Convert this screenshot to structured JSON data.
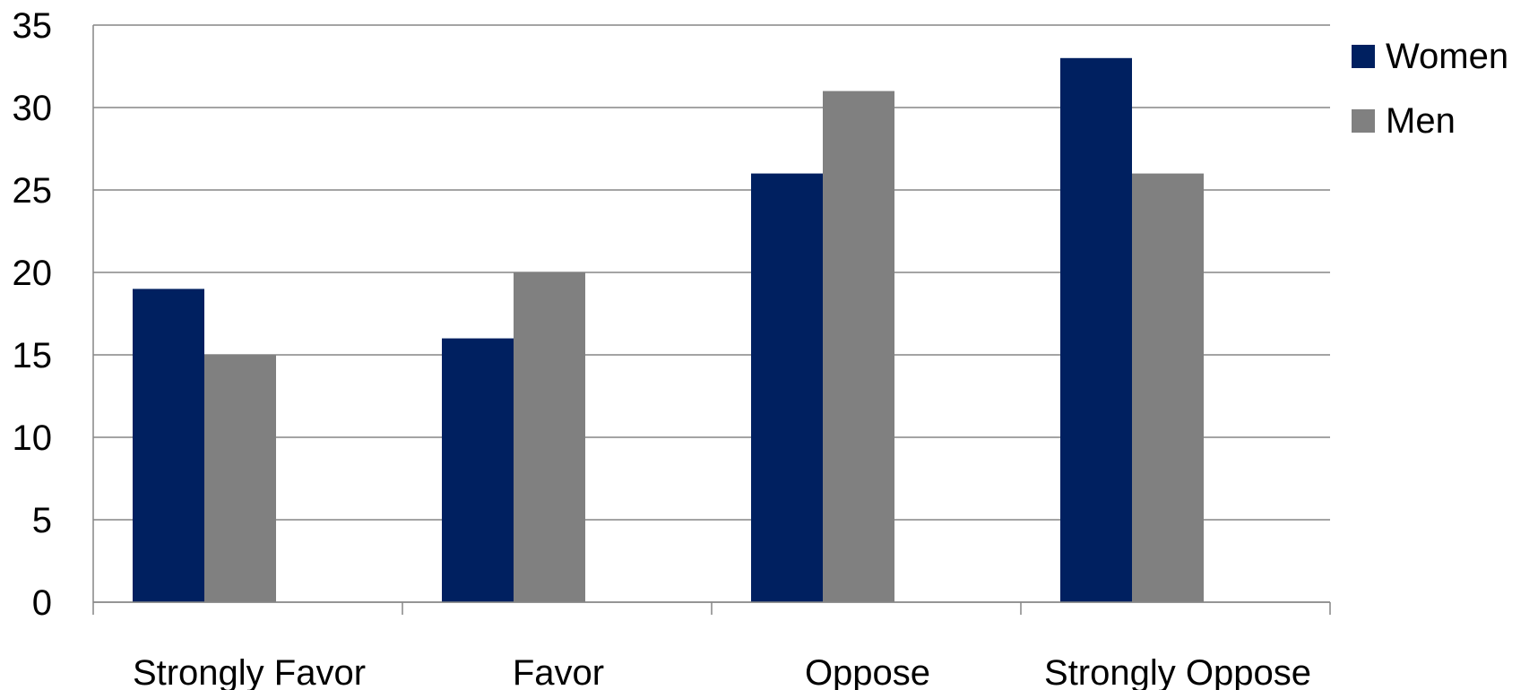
{
  "chart_data": {
    "type": "bar",
    "title": "",
    "xlabel": "",
    "ylabel": "",
    "categories": [
      "Strongly Favor",
      "Favor",
      "Oppose",
      "Strongly Oppose"
    ],
    "series": [
      {
        "name": "Women",
        "values": [
          19,
          16,
          26,
          33
        ],
        "color": "#002060"
      },
      {
        "name": "Men",
        "values": [
          15,
          20,
          31,
          26
        ],
        "color": "#808080"
      }
    ],
    "ylim": [
      0,
      35
    ],
    "yticks": [
      "0",
      "5",
      "10",
      "15",
      "20",
      "25",
      "30",
      "35"
    ],
    "grid": true,
    "legend_position": "top-right"
  }
}
